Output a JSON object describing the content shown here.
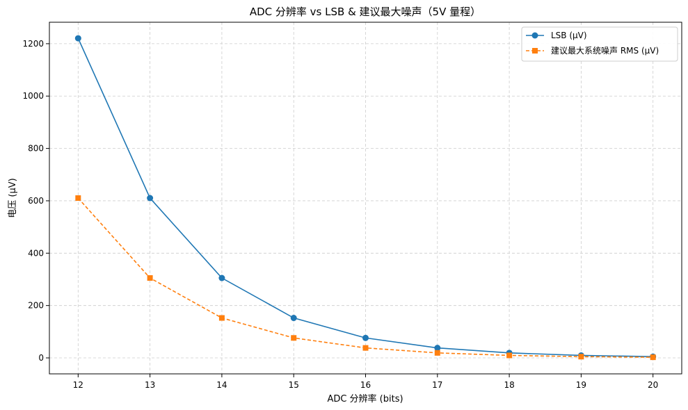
{
  "chart_data": {
    "type": "line",
    "title": "ADC 分辨率 vs LSB & 建议最大噪声（5V 量程）",
    "xlabel": "ADC 分辨率 (bits)",
    "ylabel": "电压 (μV)",
    "x": [
      12,
      13,
      14,
      15,
      16,
      17,
      18,
      19,
      20
    ],
    "xlim": [
      11.6,
      20.4
    ],
    "ylim": [
      -61,
      1282
    ],
    "xticks": [
      12,
      13,
      14,
      15,
      16,
      17,
      18,
      19,
      20
    ],
    "yticks": [
      0,
      200,
      400,
      600,
      800,
      1000,
      1200
    ],
    "grid": true,
    "legend_position": "top-right",
    "series": [
      {
        "name": "LSB (μV)",
        "color": "#1f77b4",
        "marker": "circle",
        "line_style": "solid",
        "values": [
          1220.7,
          610.4,
          305.2,
          152.6,
          76.3,
          38.1,
          19.1,
          9.5,
          4.8
        ]
      },
      {
        "name": "建议最大系统噪声 RMS (μV)",
        "color": "#ff7f0e",
        "marker": "square",
        "line_style": "dashed",
        "values": [
          610.4,
          305.2,
          152.6,
          76.3,
          38.1,
          19.1,
          9.5,
          4.8,
          2.4
        ]
      }
    ]
  }
}
